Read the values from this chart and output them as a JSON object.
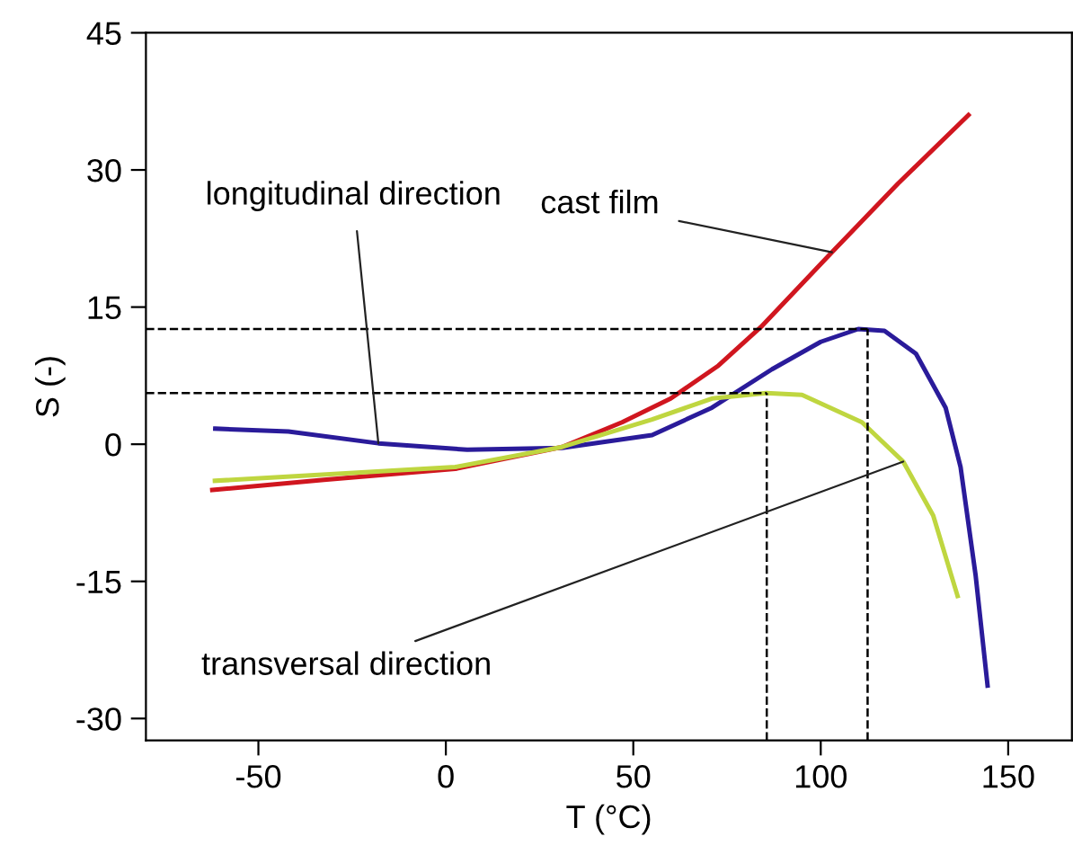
{
  "chart_data": {
    "type": "line",
    "xlabel": "T (°C)",
    "ylabel": "S (-)",
    "xlim": [
      -80,
      167
    ],
    "ylim": [
      -32.4,
      45
    ],
    "xticks": [
      -50,
      0,
      50,
      100,
      150
    ],
    "yticks": [
      -30,
      -15,
      0,
      15,
      30,
      45
    ],
    "grid": false,
    "legend": false,
    "marker": "none",
    "line_style": "solid",
    "series": [
      {
        "color": "#2a1b9a",
        "x": [
          -61.5,
          -42,
          -18,
          5.7,
          31,
          55,
          71,
          87,
          100,
          110,
          117,
          125.4,
          133.3,
          137.3,
          141.3,
          144.5
        ],
        "values": [
          1.7,
          1.4,
          0.1,
          -0.6,
          -0.4,
          1.0,
          4.0,
          8.2,
          11.2,
          12.6,
          12.4,
          9.9,
          4.0,
          -2.5,
          -14.3,
          -26.4
        ]
      },
      {
        "color": "#d0161f",
        "x": [
          -62.3,
          -32.5,
          2.5,
          31,
          47,
          60,
          72.7,
          84,
          103,
          120.6,
          139.4
        ],
        "values": [
          -5.0,
          -3.9,
          -2.7,
          -0.3,
          2.4,
          5.0,
          8.6,
          12.8,
          21.0,
          28.5,
          36.0
        ]
      },
      {
        "color": "#bfd640",
        "x": [
          -61.6,
          2.5,
          31,
          55,
          71,
          85.5,
          95,
          111,
          122,
          130,
          136.5
        ],
        "values": [
          -4.0,
          -2.5,
          -0.3,
          2.7,
          5.0,
          5.6,
          5.4,
          2.4,
          -1.9,
          -7.8,
          -16.6
        ]
      }
    ],
    "ref_lines": [
      {
        "axis": "y",
        "value": 12.6,
        "line_style": "dashed",
        "color": "#000000"
      },
      {
        "axis": "y",
        "value": 5.6,
        "line_style": "dashed",
        "color": "#000000"
      },
      {
        "axis": "x",
        "value": 85.6,
        "line_style": "dashed",
        "color": "#000000"
      },
      {
        "axis": "x",
        "value": 112.5,
        "line_style": "dashed",
        "color": "#000000"
      }
    ],
    "annotations": [
      {
        "text": "cast film",
        "x": 103,
        "y": 21.0
      },
      {
        "text": "longitudinal direction",
        "x": -18,
        "y": 0.1
      },
      {
        "text": "transversal direction",
        "x": 122,
        "y": -1.9
      }
    ]
  }
}
